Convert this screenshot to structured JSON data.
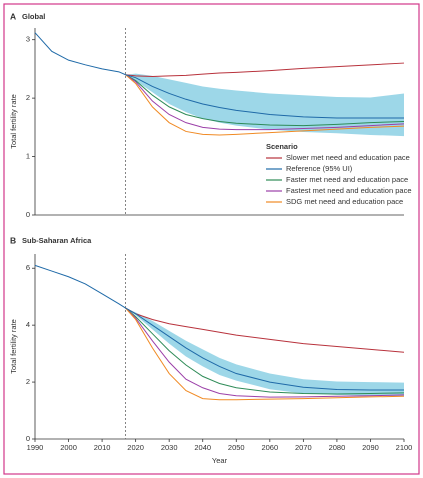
{
  "chart_data": [
    {
      "type": "line",
      "panel_label": "A",
      "title": "Global",
      "ylabel": "Total fertility rate",
      "x": [
        1990,
        1995,
        2000,
        2005,
        2010,
        2015,
        2017,
        2020,
        2025,
        2030,
        2035,
        2040,
        2045,
        2050,
        2060,
        2070,
        2080,
        2090,
        2100
      ],
      "xlim": [
        1990,
        2100
      ],
      "ylim": [
        0,
        3.2
      ],
      "yticks": [
        0,
        1,
        2,
        3
      ],
      "forecast_start": 2017,
      "band_color": "#9dd7e8",
      "legend_title": "Scenario",
      "legend": "lower right",
      "series": [
        {
          "name": "Slower met need and education pace",
          "color": "#b8323c",
          "values": [
            null,
            null,
            null,
            null,
            null,
            null,
            2.4,
            2.38,
            2.37,
            2.38,
            2.39,
            2.41,
            2.43,
            2.44,
            2.47,
            2.51,
            2.54,
            2.57,
            2.6
          ]
        },
        {
          "name": "Reference (95% UI)",
          "color": "#1f6aa8",
          "values": [
            3.12,
            2.8,
            2.65,
            2.57,
            2.5,
            2.45,
            2.4,
            2.35,
            2.2,
            2.08,
            1.98,
            1.9,
            1.84,
            1.79,
            1.72,
            1.68,
            1.66,
            1.66,
            1.66
          ],
          "ui_upper": [
            null,
            null,
            null,
            null,
            null,
            null,
            2.4,
            2.42,
            2.38,
            2.32,
            2.26,
            2.2,
            2.16,
            2.13,
            2.08,
            2.05,
            2.02,
            2.01,
            2.08
          ],
          "ui_lower": [
            null,
            null,
            null,
            null,
            null,
            null,
            2.4,
            2.3,
            2.1,
            1.9,
            1.76,
            1.65,
            1.58,
            1.53,
            1.46,
            1.42,
            1.4,
            1.37,
            1.35
          ]
        },
        {
          "name": "Faster met need and education pace",
          "color": "#2e8b57",
          "values": [
            null,
            null,
            null,
            null,
            null,
            null,
            2.4,
            2.3,
            2.05,
            1.85,
            1.72,
            1.65,
            1.6,
            1.57,
            1.54,
            1.53,
            1.55,
            1.58,
            1.6
          ]
        },
        {
          "name": "Fastest met need and education pace",
          "color": "#9b3fa8",
          "values": [
            null,
            null,
            null,
            null,
            null,
            null,
            2.4,
            2.28,
            1.95,
            1.72,
            1.58,
            1.5,
            1.47,
            1.46,
            1.46,
            1.48,
            1.5,
            1.53,
            1.56
          ]
        },
        {
          "name": "SDG met need and education pace",
          "color": "#f08a24",
          "values": [
            null,
            null,
            null,
            null,
            null,
            null,
            2.4,
            2.25,
            1.85,
            1.58,
            1.43,
            1.38,
            1.37,
            1.38,
            1.41,
            1.44,
            1.47,
            1.5,
            1.52
          ]
        }
      ]
    },
    {
      "type": "line",
      "panel_label": "B",
      "title": "Sub-Saharan Africa",
      "ylabel": "Total fertility rate",
      "xlabel": "Year",
      "x": [
        1990,
        1995,
        2000,
        2005,
        2010,
        2015,
        2017,
        2020,
        2025,
        2030,
        2035,
        2040,
        2045,
        2050,
        2060,
        2070,
        2080,
        2090,
        2100
      ],
      "xlim": [
        1990,
        2100
      ],
      "ylim": [
        0,
        6.5
      ],
      "yticks": [
        0,
        2,
        4,
        6
      ],
      "xticks": [
        1990,
        2000,
        2010,
        2020,
        2030,
        2040,
        2050,
        2060,
        2070,
        2080,
        2090,
        2100
      ],
      "forecast_start": 2017,
      "band_color": "#9dd7e8",
      "series": [
        {
          "color": "#b8323c",
          "values": [
            null,
            null,
            null,
            null,
            null,
            null,
            4.6,
            4.4,
            4.2,
            4.05,
            3.95,
            3.85,
            3.75,
            3.65,
            3.5,
            3.35,
            3.25,
            3.15,
            3.05
          ]
        },
        {
          "color": "#1f6aa8",
          "values": [
            6.1,
            5.9,
            5.7,
            5.45,
            5.1,
            4.75,
            4.6,
            4.4,
            4.0,
            3.6,
            3.2,
            2.85,
            2.55,
            2.3,
            2.0,
            1.82,
            1.74,
            1.72,
            1.72
          ],
          "ui_upper": [
            null,
            null,
            null,
            null,
            null,
            null,
            4.6,
            4.45,
            4.15,
            3.8,
            3.45,
            3.15,
            2.85,
            2.62,
            2.3,
            2.1,
            2.02,
            2.0,
            1.98
          ],
          "ui_lower": [
            null,
            null,
            null,
            null,
            null,
            null,
            4.6,
            4.35,
            3.85,
            3.35,
            2.9,
            2.55,
            2.25,
            2.05,
            1.75,
            1.6,
            1.55,
            1.52,
            1.5
          ]
        },
        {
          "color": "#2e8b57",
          "values": [
            null,
            null,
            null,
            null,
            null,
            null,
            4.6,
            4.3,
            3.7,
            3.1,
            2.6,
            2.2,
            1.95,
            1.8,
            1.65,
            1.6,
            1.58,
            1.6,
            1.62
          ]
        },
        {
          "color": "#9b3fa8",
          "values": [
            null,
            null,
            null,
            null,
            null,
            null,
            4.6,
            4.25,
            3.45,
            2.7,
            2.1,
            1.8,
            1.6,
            1.52,
            1.47,
            1.48,
            1.5,
            1.52,
            1.55
          ]
        },
        {
          "color": "#f08a24",
          "values": [
            null,
            null,
            null,
            null,
            null,
            null,
            4.6,
            4.2,
            3.2,
            2.3,
            1.7,
            1.42,
            1.38,
            1.38,
            1.4,
            1.42,
            1.45,
            1.48,
            1.5
          ]
        }
      ]
    }
  ]
}
